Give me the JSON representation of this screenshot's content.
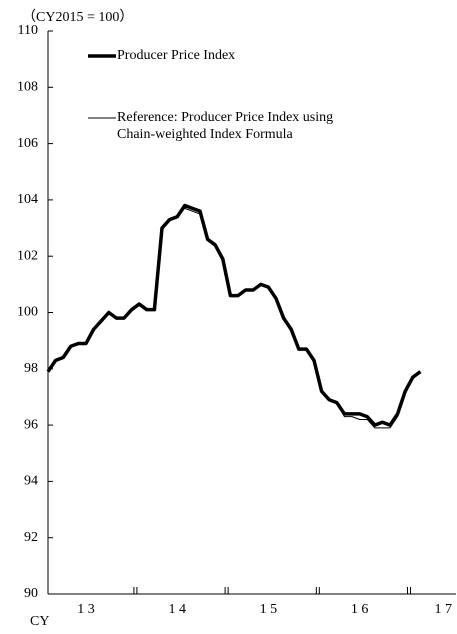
{
  "chart_data": {
    "type": "line",
    "subtitle": "（CY2015 = 100）",
    "x_label": "CY",
    "categories": [
      null,
      null,
      null,
      null,
      null,
      "1 3",
      null,
      null,
      null,
      null,
      null,
      null,
      null,
      null,
      null,
      null,
      null,
      "1 4",
      null,
      null,
      null,
      null,
      null,
      null,
      null,
      null,
      null,
      null,
      null,
      "1 5",
      null,
      null,
      null,
      null,
      null,
      null,
      null,
      null,
      null,
      null,
      null,
      "1 6",
      null,
      null,
      null,
      null,
      null,
      null,
      null,
      null,
      null,
      null,
      "1 7"
    ],
    "series": [
      {
        "name": "Producer Price Index",
        "color": "#000000",
        "width": 3.5,
        "values": [
          97.9,
          98.3,
          98.4,
          98.8,
          98.9,
          98.9,
          99.4,
          99.7,
          100.0,
          99.8,
          99.8,
          100.1,
          100.3,
          100.1,
          100.1,
          103.0,
          103.3,
          103.4,
          103.8,
          103.7,
          103.6,
          102.6,
          102.4,
          101.9,
          100.6,
          100.6,
          100.8,
          100.8,
          101.0,
          100.9,
          100.5,
          99.8,
          99.4,
          98.7,
          98.7,
          98.3,
          97.2,
          96.9,
          96.8,
          96.4,
          96.4,
          96.4,
          96.3,
          96.0,
          96.1,
          96.0,
          96.4,
          97.2,
          97.7,
          97.9,
          null,
          null,
          null
        ]
      },
      {
        "name": "Reference: Producer Price Index using Chain-weighted Index Formula",
        "color": "#000000",
        "width": 1,
        "values": [
          97.9,
          98.3,
          98.4,
          98.8,
          98.9,
          98.9,
          99.4,
          99.7,
          100.0,
          99.8,
          99.8,
          100.1,
          100.3,
          100.1,
          100.1,
          103.0,
          103.3,
          103.4,
          103.7,
          103.6,
          103.5,
          102.6,
          102.4,
          101.9,
          100.6,
          100.6,
          100.8,
          100.8,
          101.0,
          100.9,
          100.5,
          99.8,
          99.4,
          98.7,
          98.7,
          98.3,
          97.2,
          96.9,
          96.8,
          96.3,
          96.3,
          96.2,
          96.2,
          95.9,
          95.9,
          95.9,
          96.3,
          97.1,
          97.7,
          97.9,
          null,
          null,
          null
        ]
      }
    ],
    "ylim": [
      90,
      110
    ],
    "yticks": [
      90,
      92,
      94,
      96,
      98,
      100,
      102,
      104,
      106,
      108,
      110
    ],
    "grid": false
  }
}
